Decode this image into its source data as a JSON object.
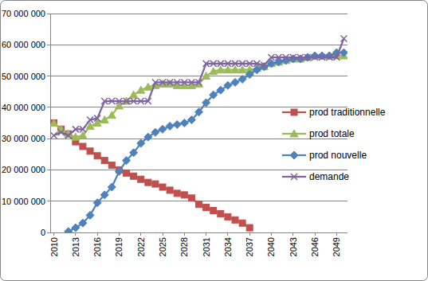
{
  "chart_data": {
    "type": "line",
    "x": [
      2010,
      2011,
      2012,
      2013,
      2014,
      2015,
      2016,
      2017,
      2018,
      2019,
      2020,
      2021,
      2022,
      2023,
      2024,
      2025,
      2026,
      2027,
      2028,
      2029,
      2030,
      2031,
      2032,
      2033,
      2034,
      2035,
      2036,
      2037,
      2038,
      2039,
      2040,
      2041,
      2042,
      2043,
      2044,
      2045,
      2046,
      2047,
      2048,
      2049,
      2050
    ],
    "xlim": [
      2009.5,
      2050.5
    ],
    "xticks": [
      2010,
      2013,
      2016,
      2019,
      2022,
      2025,
      2028,
      2031,
      2034,
      2037,
      2040,
      2043,
      2046,
      2049
    ],
    "ylim": [
      0,
      70000000
    ],
    "yticks": [
      0,
      {
        "value": 10000000,
        "label": "10 000 000"
      },
      {
        "value": 20000000,
        "label": "20 000 000"
      },
      {
        "value": 30000000,
        "label": "30 000 000"
      },
      {
        "value": 40000000,
        "label": "40 000 000"
      },
      {
        "value": 50000000,
        "label": "50 000 000"
      },
      {
        "value": 60000000,
        "label": "60 000 000"
      },
      {
        "value": 70000000,
        "label": "70 000 000"
      }
    ],
    "grid": true,
    "legend": "right",
    "series": [
      {
        "name": "prod traditionnelle",
        "color": "#c0504d",
        "marker": "square",
        "values": [
          35000000,
          33000000,
          31500000,
          29000000,
          27500000,
          26000000,
          24500000,
          23000000,
          21500000,
          20000000,
          19000000,
          18000000,
          17000000,
          16000000,
          15500000,
          14500000,
          13500000,
          12500000,
          12000000,
          11000000,
          9000000,
          8000000,
          7000000,
          6000000,
          5000000,
          4000000,
          3000000,
          1500000,
          null,
          null,
          null,
          null,
          null,
          null,
          null,
          null,
          null,
          null,
          null,
          null,
          null
        ]
      },
      {
        "name": "prod totale",
        "color": "#9bbb59",
        "marker": "triangle",
        "values": [
          35000000,
          33000000,
          31500000,
          30500000,
          31000000,
          34000000,
          35000000,
          36000000,
          37500000,
          40500000,
          42000000,
          44000000,
          45500000,
          46500000,
          47000000,
          47500000,
          47500000,
          47000000,
          47000000,
          47000000,
          47500000,
          50000000,
          51500000,
          52000000,
          52000000,
          52000000,
          52000000,
          52000000,
          52500000,
          53000000,
          54000000,
          54500000,
          55000000,
          55500000,
          55500000,
          56000000,
          56500000,
          56500000,
          56500000,
          56500000,
          56500000
        ]
      },
      {
        "name": "prod nouvelle",
        "color": "#4f81bd",
        "marker": "diamond",
        "values": [
          null,
          null,
          300000,
          1500000,
          3000000,
          5500000,
          9500000,
          12000000,
          14500000,
          19500000,
          23000000,
          25500000,
          28500000,
          30500000,
          32000000,
          33000000,
          34000000,
          34500000,
          35000000,
          36000000,
          38500000,
          41500000,
          44000000,
          45500000,
          47000000,
          48000000,
          49000000,
          50500000,
          52000000,
          53000000,
          54000000,
          54500000,
          55000000,
          55500000,
          55500000,
          56000000,
          56500000,
          56500000,
          56500000,
          57500000,
          57500000
        ]
      },
      {
        "name": "demande",
        "color": "#8064a2",
        "marker": "x",
        "values": [
          31000000,
          32000000,
          31000000,
          33000000,
          33000000,
          36000000,
          36500000,
          42000000,
          42000000,
          42000000,
          42000000,
          42000000,
          42000000,
          42000000,
          48000000,
          48000000,
          48000000,
          48000000,
          48000000,
          48000000,
          48000000,
          54000000,
          54000000,
          54000000,
          54000000,
          54000000,
          54000000,
          54000000,
          54000000,
          53500000,
          56000000,
          56000000,
          56000000,
          56000000,
          56000000,
          56000000,
          56000000,
          56000000,
          56000000,
          56000000,
          62000000
        ]
      }
    ]
  }
}
